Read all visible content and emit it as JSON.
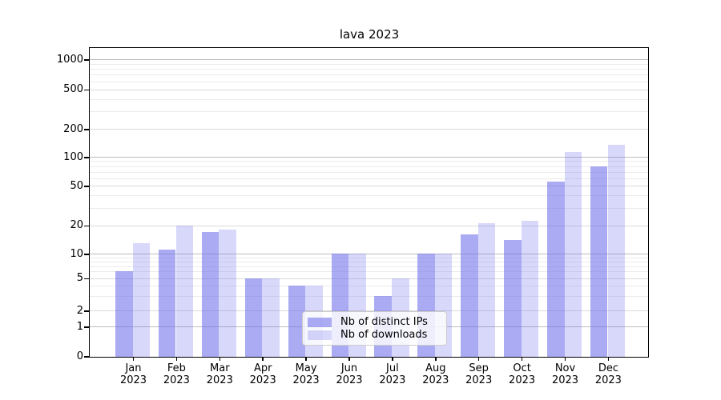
{
  "title": "lava 2023",
  "chart_data": {
    "type": "bar",
    "title": "lava 2023",
    "categories": [
      "Jan 2023",
      "Feb 2023",
      "Mar 2023",
      "Apr 2023",
      "May 2023",
      "Jun 2023",
      "Jul 2023",
      "Aug 2023",
      "Sep 2023",
      "Oct 2023",
      "Nov 2023",
      "Dec 2023"
    ],
    "months": [
      "Jan",
      "Feb",
      "Mar",
      "Apr",
      "May",
      "Jun",
      "Jul",
      "Aug",
      "Sep",
      "Oct",
      "Nov",
      "Dec"
    ],
    "year": "2023",
    "series": [
      {
        "name": "Nb of distinct IPs",
        "values": [
          6,
          11,
          17,
          5,
          4,
          10,
          3,
          10,
          16,
          14,
          55,
          80
        ]
      },
      {
        "name": "Nb of downloads",
        "values": [
          13,
          20,
          18,
          5,
          4,
          10,
          5,
          10,
          21,
          22,
          112,
          135
        ]
      }
    ],
    "yticks": [
      0,
      1,
      2,
      5,
      10,
      20,
      50,
      100,
      200,
      500,
      1000
    ],
    "yscale": "symlog",
    "ylim": [
      0,
      1300
    ],
    "grid": "horizontal major+minor",
    "legend_position": "lower center"
  },
  "legend": {
    "items": [
      {
        "label": "Nb of distinct IPs",
        "swatch": "dark-periwinkle"
      },
      {
        "label": "Nb of downloads",
        "swatch": "light-lavender"
      }
    ]
  },
  "colors": {
    "bar_base": "#6e6eeb",
    "bar_ips_alpha": 0.58,
    "bar_downloads_alpha": 0.27,
    "bar_ips_rendered": "#abaaf3",
    "bar_downloads_rendered": "#d8d8fa",
    "grid_major": "#bdbdbd",
    "grid_mid": "#dadada",
    "grid_minor": "#ececec",
    "axis": "#000000"
  }
}
